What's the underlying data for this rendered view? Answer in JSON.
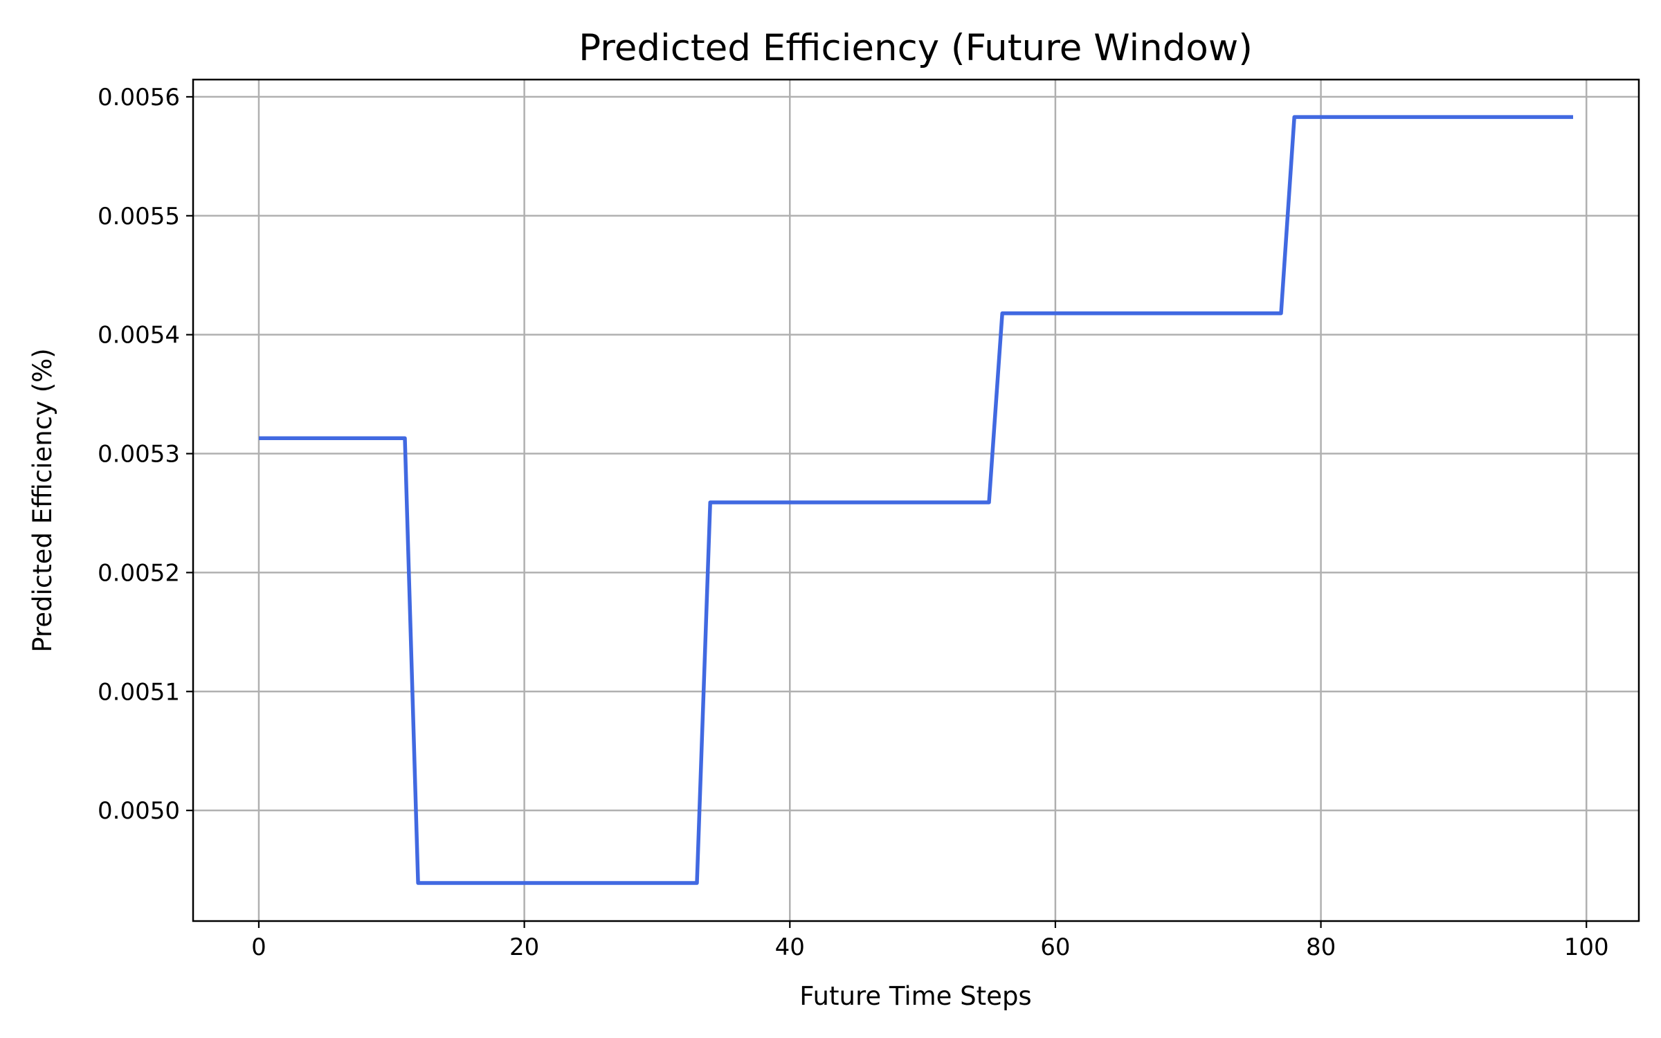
{
  "chart_data": {
    "type": "line",
    "title": "Predicted Efficiency (Future Window)",
    "xlabel": "Future Time Steps",
    "ylabel": "Predicted Efficiency (%)",
    "xlim": [
      -4.95,
      103.95
    ],
    "ylim": [
      0.004907,
      0.0056145
    ],
    "xticks": [
      0,
      20,
      40,
      60,
      80,
      100
    ],
    "xtick_labels": [
      "0",
      "20",
      "40",
      "60",
      "80",
      "100"
    ],
    "yticks": [
      0.005,
      0.0051,
      0.0052,
      0.0053,
      0.0054,
      0.0055,
      0.0056
    ],
    "ytick_labels": [
      "0.0050",
      "0.0051",
      "0.0052",
      "0.0053",
      "0.0054",
      "0.0055",
      "0.0056"
    ],
    "grid": true,
    "color": "#4169e1",
    "series": [
      {
        "x": [
          0,
          11,
          12,
          33,
          34,
          55,
          56,
          77,
          78,
          99
        ],
        "y": [
          0.005313,
          0.005313,
          0.004939,
          0.004939,
          0.005259,
          0.005259,
          0.005418,
          0.005418,
          0.005583,
          0.005583
        ]
      }
    ]
  }
}
